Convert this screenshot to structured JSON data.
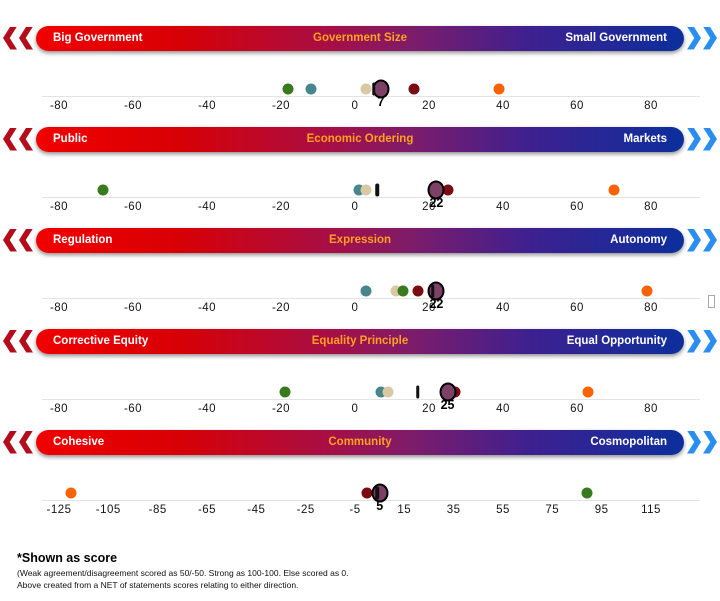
{
  "series_colors": {
    "green": "#3a7a1e",
    "teal": "#47868c",
    "tan": "#d8c9a3",
    "darkred": "#7a0c12",
    "orange": "#f86300",
    "purple": "#7d4066",
    "black": "#111111"
  },
  "accent_colors": {
    "left_chevron_red": "#b30d1c",
    "right_chevron_blue": "#2a8df0",
    "bar_left_red": "#f10000",
    "bar_mid_purple": "#7d1c6a",
    "bar_right_blue": "#0c2f9c",
    "center_label_orange": "#ffa01e"
  },
  "chart_data": {
    "type": "scatter",
    "title": "",
    "note": "Five horizontal ideological spectra; colored dots are scores per group, large purple dot is the labeled score, black bar is a marker",
    "rows": [
      {
        "left_label": "Big Government",
        "center_label": "Government Size",
        "right_label": "Small Government",
        "axis": {
          "min": -80,
          "max": 80,
          "ticks": [
            -80,
            -60,
            -40,
            -20,
            0,
            20,
            40,
            60,
            80
          ]
        },
        "points": [
          {
            "series": "green",
            "value": -18
          },
          {
            "series": "teal",
            "value": -12
          },
          {
            "series": "tan",
            "value": 3
          },
          {
            "series": "darkred",
            "value": 16
          },
          {
            "series": "orange",
            "value": 39
          }
        ],
        "highlight": {
          "series": "purple",
          "value": 7,
          "label": "7"
        },
        "marker": {
          "series": "black",
          "value": 5
        }
      },
      {
        "left_label": "Public",
        "center_label": "Economic Ordering",
        "right_label": "Markets",
        "axis": {
          "min": -80,
          "max": 80,
          "ticks": [
            -80,
            -60,
            -40,
            -20,
            0,
            20,
            40,
            60,
            80
          ]
        },
        "points": [
          {
            "series": "green",
            "value": -68
          },
          {
            "series": "teal",
            "value": 1
          },
          {
            "series": "tan",
            "value": 3
          },
          {
            "series": "darkred",
            "value": 25
          },
          {
            "series": "orange",
            "value": 70
          }
        ],
        "highlight": {
          "series": "purple",
          "value": 22,
          "label": "22"
        },
        "marker": {
          "series": "black",
          "value": 6
        }
      },
      {
        "left_label": "Regulation",
        "center_label": "Expression",
        "right_label": "Autonomy",
        "axis": {
          "min": -80,
          "max": 80,
          "ticks": [
            -80,
            -60,
            -40,
            -20,
            0,
            20,
            40,
            60,
            80
          ]
        },
        "points": [
          {
            "series": "teal",
            "value": 3
          },
          {
            "series": "tan",
            "value": 11
          },
          {
            "series": "green",
            "value": 13
          },
          {
            "series": "darkred",
            "value": 17
          },
          {
            "series": "orange",
            "value": 79
          }
        ],
        "highlight": {
          "series": "purple",
          "value": 22,
          "label": "22"
        },
        "marker": {
          "series": "black",
          "value": 21
        }
      },
      {
        "left_label": "Corrective Equity",
        "center_label": "Equality Principle",
        "right_label": "Equal Opportunity",
        "axis": {
          "min": -80,
          "max": 80,
          "ticks": [
            -80,
            -60,
            -40,
            -20,
            0,
            20,
            40,
            60,
            80
          ]
        },
        "points": [
          {
            "series": "green",
            "value": -19
          },
          {
            "series": "teal",
            "value": 7
          },
          {
            "series": "tan",
            "value": 9
          },
          {
            "series": "darkred",
            "value": 27
          },
          {
            "series": "orange",
            "value": 63
          }
        ],
        "highlight": {
          "series": "purple",
          "value": 25,
          "label": "25"
        },
        "marker": {
          "series": "black",
          "value": 17
        }
      },
      {
        "left_label": "Cohesive",
        "center_label": "Community",
        "right_label": "Cosmopolitan",
        "axis": {
          "min": -125,
          "max": 115,
          "ticks": [
            -125,
            -105,
            -85,
            -65,
            -45,
            -25,
            -5,
            15,
            35,
            55,
            75,
            95,
            115
          ]
        },
        "points": [
          {
            "series": "orange",
            "value": -120
          },
          {
            "series": "darkred",
            "value": 0
          },
          {
            "series": "green",
            "value": 89
          }
        ],
        "highlight": {
          "series": "purple",
          "value": 5,
          "label": "5"
        },
        "marker": {
          "series": "black",
          "value": 4
        }
      }
    ]
  },
  "footer": {
    "title": "*Shown as score",
    "line1": "(Weak agreement/disagreement scored as 50/-50. Strong as 100-100. Else scored as 0.",
    "line2": "Above created from a NET of statements scores relating to either direction."
  }
}
